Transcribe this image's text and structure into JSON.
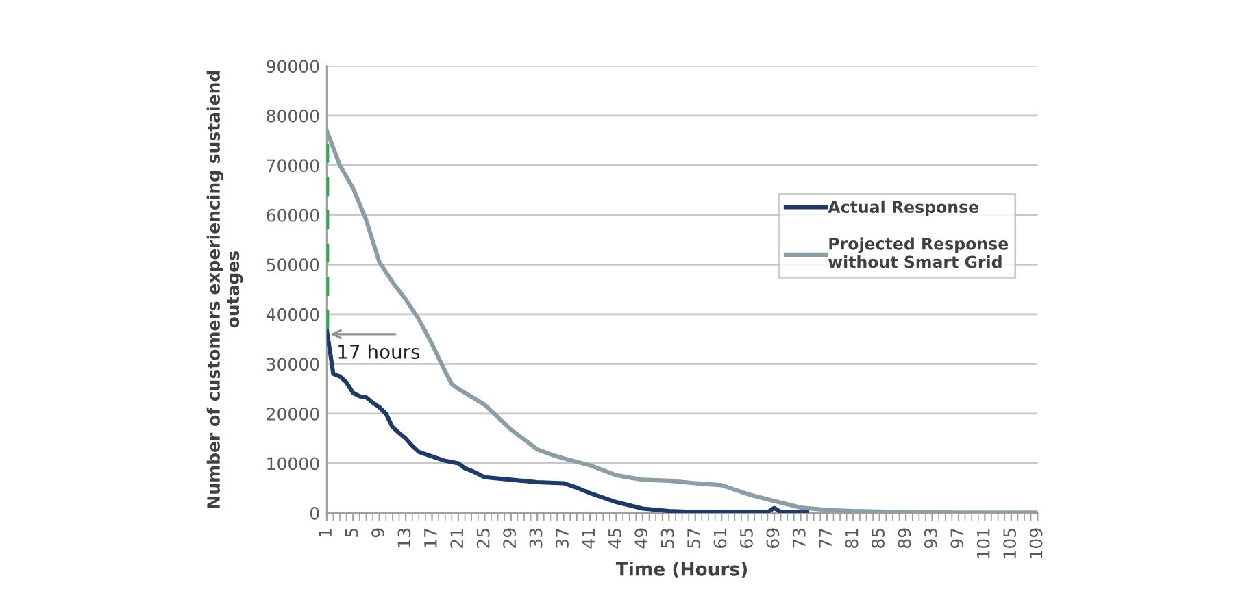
{
  "chart_data": {
    "type": "line",
    "xlabel": "Time (Hours)",
    "ylabel": "Number of customers experiencing sustaiend\noutages",
    "xlim": [
      1,
      109
    ],
    "xticks": [
      1,
      5,
      9,
      13,
      17,
      21,
      25,
      29,
      33,
      37,
      41,
      45,
      49,
      53,
      57,
      61,
      65,
      69,
      73,
      77,
      81,
      85,
      89,
      93,
      97,
      101,
      105,
      109
    ],
    "ylim": [
      0,
      90000
    ],
    "yticks": [
      0,
      10000,
      20000,
      30000,
      40000,
      50000,
      60000,
      70000,
      80000,
      90000
    ],
    "grid": "y",
    "legend": "right",
    "marker": "none",
    "line_style": "solid",
    "annotations": [
      {
        "text": "17 hours",
        "x": 1,
        "y": 36000
      }
    ],
    "series": [
      {
        "name": "Actual Response",
        "color": "#1f3a68",
        "x": [
          1,
          2,
          3,
          4,
          5,
          6,
          7,
          8,
          9,
          10,
          11,
          12,
          13,
          14,
          15,
          17,
          19,
          21,
          22,
          23,
          25,
          29,
          33,
          37,
          39,
          41,
          45,
          49,
          53,
          57,
          61,
          65,
          68,
          69,
          70,
          74
        ],
        "values": [
          37000,
          28000,
          27500,
          26300,
          24200,
          23500,
          23300,
          22200,
          21300,
          20000,
          17300,
          16100,
          15000,
          13500,
          12300,
          11400,
          10500,
          10000,
          9000,
          8500,
          7200,
          6700,
          6200,
          6000,
          5100,
          4000,
          2200,
          900,
          400,
          200,
          200,
          200,
          200,
          1000,
          200,
          200
        ]
      },
      {
        "name": "Projected Response\nwithout Smart Grid",
        "color": "#8b9ea6",
        "x": [
          1,
          3,
          5,
          7,
          9,
          11,
          13,
          15,
          17,
          19,
          20,
          21,
          25,
          29,
          33,
          35,
          37,
          41,
          45,
          49,
          53,
          57,
          61,
          65,
          69,
          73,
          77,
          81,
          85,
          89,
          97,
          109
        ],
        "values": [
          77000,
          70000,
          65400,
          59000,
          50500,
          46500,
          43000,
          39000,
          34000,
          28500,
          26000,
          25000,
          21800,
          16800,
          12800,
          11800,
          11000,
          9600,
          7600,
          6700,
          6500,
          6000,
          5600,
          3800,
          2400,
          1100,
          600,
          400,
          300,
          200,
          100,
          100
        ]
      },
      {
        "type": "line",
        "color": "#1faa4a",
        "line_style": "dashed",
        "x": [
          1,
          1
        ],
        "values": [
          37000,
          77000
        ]
      }
    ]
  }
}
